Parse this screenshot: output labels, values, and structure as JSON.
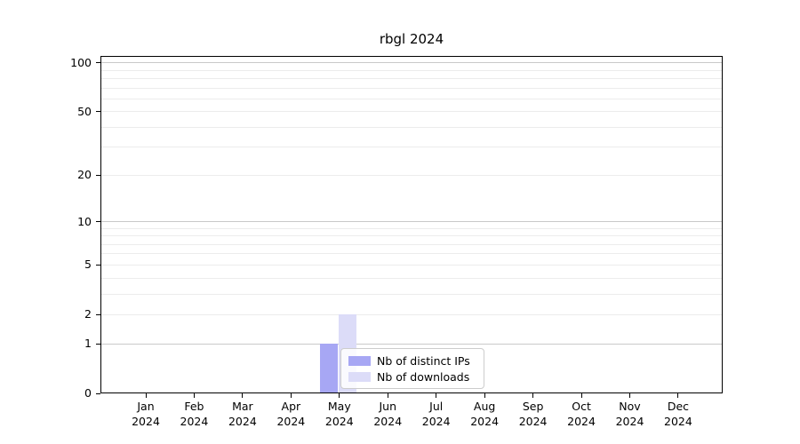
{
  "figure": {
    "background": "#ffffff"
  },
  "chart_data": {
    "type": "bar",
    "title": "rbgl 2024",
    "categories": [
      "Jan 2024",
      "Feb 2024",
      "Mar 2024",
      "Apr 2024",
      "May 2024",
      "Jun 2024",
      "Jul 2024",
      "Aug 2024",
      "Sep 2024",
      "Oct 2024",
      "Nov 2024",
      "Dec 2024"
    ],
    "x_tick_months": [
      "Jan",
      "Feb",
      "Mar",
      "Apr",
      "May",
      "Jun",
      "Jul",
      "Aug",
      "Sep",
      "Oct",
      "Nov",
      "Dec"
    ],
    "x_tick_year": "2024",
    "series": [
      {
        "name": "Nb of distinct IPs",
        "color": "#a7a7f4",
        "values": [
          0,
          0,
          0,
          0,
          1,
          0,
          0,
          0,
          0,
          0,
          0,
          0
        ]
      },
      {
        "name": "Nb of downloads",
        "color": "#dcdcf8",
        "values": [
          0,
          0,
          0,
          0,
          2,
          0,
          0,
          0,
          0,
          0,
          0,
          0
        ]
      }
    ],
    "y_axis": {
      "scale": "log1p",
      "tick_values": [
        0,
        1,
        2,
        5,
        10,
        20,
        50,
        100
      ],
      "major_grid_values": [
        1,
        10,
        100
      ],
      "minor_grid_values": [
        2,
        3,
        4,
        5,
        6,
        7,
        8,
        9,
        20,
        30,
        40,
        50,
        60,
        70,
        80,
        90
      ],
      "ylim": [
        0,
        110
      ]
    },
    "grid": "horizontal",
    "legend_position": "lower-center"
  },
  "legend": {
    "items": [
      {
        "label": "Nb of distinct IPs",
        "color": "#a7a7f4"
      },
      {
        "label": "Nb of downloads",
        "color": "#dcdcf8"
      }
    ]
  },
  "colors": {
    "bar_distinct_ips": "#a7a7f4",
    "bar_downloads": "#dcdcf8",
    "grid_major": "#c9c9c9",
    "grid_minor": "#ececec",
    "spine": "#000000",
    "text": "#000000",
    "legend_border": "#cccccc",
    "legend_background": "rgba(255,255,255,0.85)"
  }
}
